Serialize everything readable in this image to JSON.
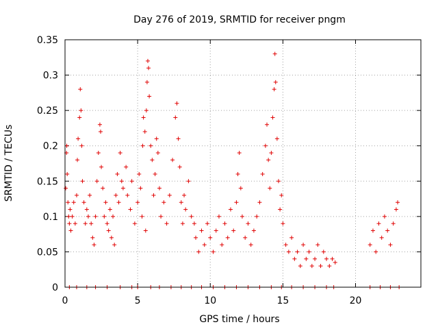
{
  "chart_data": {
    "type": "scatter",
    "title": "Day 276 of 2019, SRMTID for receiver pngm",
    "xlabel": "GPS time / hours",
    "ylabel": "SRMTID / TECUs",
    "xlim": [
      0,
      24.5
    ],
    "ylim": [
      0,
      0.35
    ],
    "xticks": [
      0,
      5,
      10,
      15,
      20
    ],
    "xtick_labels": [
      "0",
      "5",
      "10",
      "15",
      "20"
    ],
    "yticks": [
      0,
      0.05,
      0.1,
      0.15,
      0.2,
      0.25,
      0.3,
      0.35
    ],
    "ytick_labels": [
      "0",
      "0.05",
      "0.1",
      "0.15",
      "0.2",
      "0.25",
      "0.3",
      "0.35"
    ],
    "grid": true,
    "marker": "+",
    "color": "#e00000",
    "series": [
      {
        "name": "SRMTID",
        "points": [
          [
            0.05,
            0.14
          ],
          [
            0.1,
            0.19
          ],
          [
            0.12,
            0.2
          ],
          [
            0.15,
            0.16
          ],
          [
            0.2,
            0.12
          ],
          [
            0.25,
            0.1
          ],
          [
            0.3,
            0.09
          ],
          [
            0.35,
            0.11
          ],
          [
            0.4,
            0.08
          ],
          [
            0.5,
            0.1
          ],
          [
            0.6,
            0.12
          ],
          [
            0.7,
            0.09
          ],
          [
            0.8,
            0.13
          ],
          [
            0.85,
            0.18
          ],
          [
            0.9,
            0.21
          ],
          [
            1.0,
            0.24
          ],
          [
            1.05,
            0.28
          ],
          [
            1.1,
            0.25
          ],
          [
            1.15,
            0.2
          ],
          [
            1.2,
            0.15
          ],
          [
            1.3,
            0.12
          ],
          [
            1.4,
            0.09
          ],
          [
            1.5,
            0.11
          ],
          [
            1.6,
            0.1
          ],
          [
            1.7,
            0.13
          ],
          [
            1.8,
            0.09
          ],
          [
            1.9,
            0.07
          ],
          [
            2.0,
            0.06
          ],
          [
            2.1,
            0.1
          ],
          [
            2.2,
            0.15
          ],
          [
            2.3,
            0.19
          ],
          [
            2.4,
            0.23
          ],
          [
            2.45,
            0.22
          ],
          [
            2.5,
            0.17
          ],
          [
            2.6,
            0.14
          ],
          [
            2.7,
            0.1
          ],
          [
            2.8,
            0.12
          ],
          [
            2.9,
            0.09
          ],
          [
            3.0,
            0.08
          ],
          [
            3.1,
            0.11
          ],
          [
            3.2,
            0.07
          ],
          [
            3.3,
            0.1
          ],
          [
            3.4,
            0.06
          ],
          [
            3.5,
            0.13
          ],
          [
            3.6,
            0.16
          ],
          [
            3.7,
            0.12
          ],
          [
            3.8,
            0.19
          ],
          [
            3.9,
            0.15
          ],
          [
            4.0,
            0.14
          ],
          [
            4.2,
            0.17
          ],
          [
            4.3,
            0.13
          ],
          [
            4.5,
            0.11
          ],
          [
            4.6,
            0.15
          ],
          [
            4.8,
            0.09
          ],
          [
            5.0,
            0.12
          ],
          [
            5.1,
            0.16
          ],
          [
            5.2,
            0.14
          ],
          [
            5.3,
            0.1
          ],
          [
            5.35,
            0.2
          ],
          [
            5.4,
            0.24
          ],
          [
            5.5,
            0.22
          ],
          [
            5.55,
            0.08
          ],
          [
            5.6,
            0.25
          ],
          [
            5.65,
            0.29
          ],
          [
            5.7,
            0.32
          ],
          [
            5.75,
            0.31
          ],
          [
            5.8,
            0.27
          ],
          [
            5.9,
            0.2
          ],
          [
            6.0,
            0.18
          ],
          [
            6.1,
            0.13
          ],
          [
            6.2,
            0.16
          ],
          [
            6.3,
            0.21
          ],
          [
            6.4,
            0.19
          ],
          [
            6.5,
            0.14
          ],
          [
            6.6,
            0.1
          ],
          [
            6.8,
            0.12
          ],
          [
            7.0,
            0.09
          ],
          [
            7.2,
            0.13
          ],
          [
            7.4,
            0.18
          ],
          [
            7.6,
            0.24
          ],
          [
            7.7,
            0.26
          ],
          [
            7.8,
            0.21
          ],
          [
            7.9,
            0.17
          ],
          [
            8.0,
            0.12
          ],
          [
            8.1,
            0.09
          ],
          [
            8.2,
            0.13
          ],
          [
            8.3,
            0.11
          ],
          [
            8.5,
            0.15
          ],
          [
            8.7,
            0.1
          ],
          [
            8.9,
            0.09
          ],
          [
            9.0,
            0.07
          ],
          [
            9.2,
            0.05
          ],
          [
            9.4,
            0.08
          ],
          [
            9.6,
            0.06
          ],
          [
            9.8,
            0.09
          ],
          [
            10.0,
            0.07
          ],
          [
            10.2,
            0.05
          ],
          [
            10.4,
            0.08
          ],
          [
            10.6,
            0.1
          ],
          [
            10.8,
            0.06
          ],
          [
            11.0,
            0.09
          ],
          [
            11.2,
            0.07
          ],
          [
            11.4,
            0.11
          ],
          [
            11.6,
            0.08
          ],
          [
            11.8,
            0.12
          ],
          [
            11.9,
            0.16
          ],
          [
            12.0,
            0.19
          ],
          [
            12.1,
            0.14
          ],
          [
            12.2,
            0.1
          ],
          [
            12.4,
            0.07
          ],
          [
            12.6,
            0.09
          ],
          [
            12.8,
            0.06
          ],
          [
            13.0,
            0.08
          ],
          [
            13.2,
            0.1
          ],
          [
            13.4,
            0.12
          ],
          [
            13.6,
            0.16
          ],
          [
            13.8,
            0.2
          ],
          [
            13.9,
            0.23
          ],
          [
            14.0,
            0.18
          ],
          [
            14.1,
            0.14
          ],
          [
            14.2,
            0.19
          ],
          [
            14.3,
            0.24
          ],
          [
            14.4,
            0.28
          ],
          [
            14.45,
            0.33
          ],
          [
            14.5,
            0.29
          ],
          [
            14.6,
            0.21
          ],
          [
            14.7,
            0.15
          ],
          [
            14.8,
            0.11
          ],
          [
            14.9,
            0.13
          ],
          [
            15.0,
            0.09
          ],
          [
            15.2,
            0.06
          ],
          [
            15.4,
            0.05
          ],
          [
            15.6,
            0.07
          ],
          [
            15.8,
            0.04
          ],
          [
            16.0,
            0.05
          ],
          [
            16.2,
            0.03
          ],
          [
            16.4,
            0.06
          ],
          [
            16.6,
            0.04
          ],
          [
            16.8,
            0.05
          ],
          [
            17.0,
            0.03
          ],
          [
            17.2,
            0.04
          ],
          [
            17.4,
            0.06
          ],
          [
            17.6,
            0.03
          ],
          [
            17.8,
            0.05
          ],
          [
            18.0,
            0.04
          ],
          [
            18.2,
            0.03
          ],
          [
            18.4,
            0.04
          ],
          [
            18.6,
            0.035
          ],
          [
            21.0,
            0.06
          ],
          [
            21.2,
            0.08
          ],
          [
            21.4,
            0.05
          ],
          [
            21.6,
            0.09
          ],
          [
            21.8,
            0.07
          ],
          [
            22.0,
            0.1
          ],
          [
            22.2,
            0.08
          ],
          [
            22.4,
            0.06
          ],
          [
            22.6,
            0.09
          ],
          [
            22.8,
            0.11
          ],
          [
            22.9,
            0.12
          ]
        ]
      },
      {
        "name": "zero-level",
        "points": [
          [
            0.3,
            0
          ],
          [
            0.8,
            0
          ],
          [
            1.5,
            0
          ],
          [
            2.1,
            0
          ],
          [
            2.9,
            0
          ],
          [
            3.8,
            0
          ],
          [
            4.6,
            0
          ],
          [
            5.0,
            0
          ],
          [
            5.9,
            0
          ],
          [
            6.5,
            0
          ],
          [
            7.3,
            0
          ],
          [
            8.0,
            0
          ],
          [
            8.7,
            0
          ],
          [
            9.4,
            0
          ],
          [
            10.2,
            0
          ],
          [
            11.0,
            0
          ],
          [
            11.8,
            0
          ],
          [
            12.6,
            0
          ],
          [
            13.4,
            0
          ],
          [
            14.2,
            0
          ],
          [
            14.9,
            0
          ],
          [
            15.6,
            0
          ],
          [
            16.4,
            0
          ],
          [
            17.2,
            0
          ],
          [
            18.0,
            0
          ],
          [
            18.5,
            0
          ],
          [
            21.0,
            0
          ],
          [
            21.7,
            0
          ],
          [
            22.4,
            0
          ],
          [
            23.0,
            0
          ]
        ]
      }
    ]
  }
}
